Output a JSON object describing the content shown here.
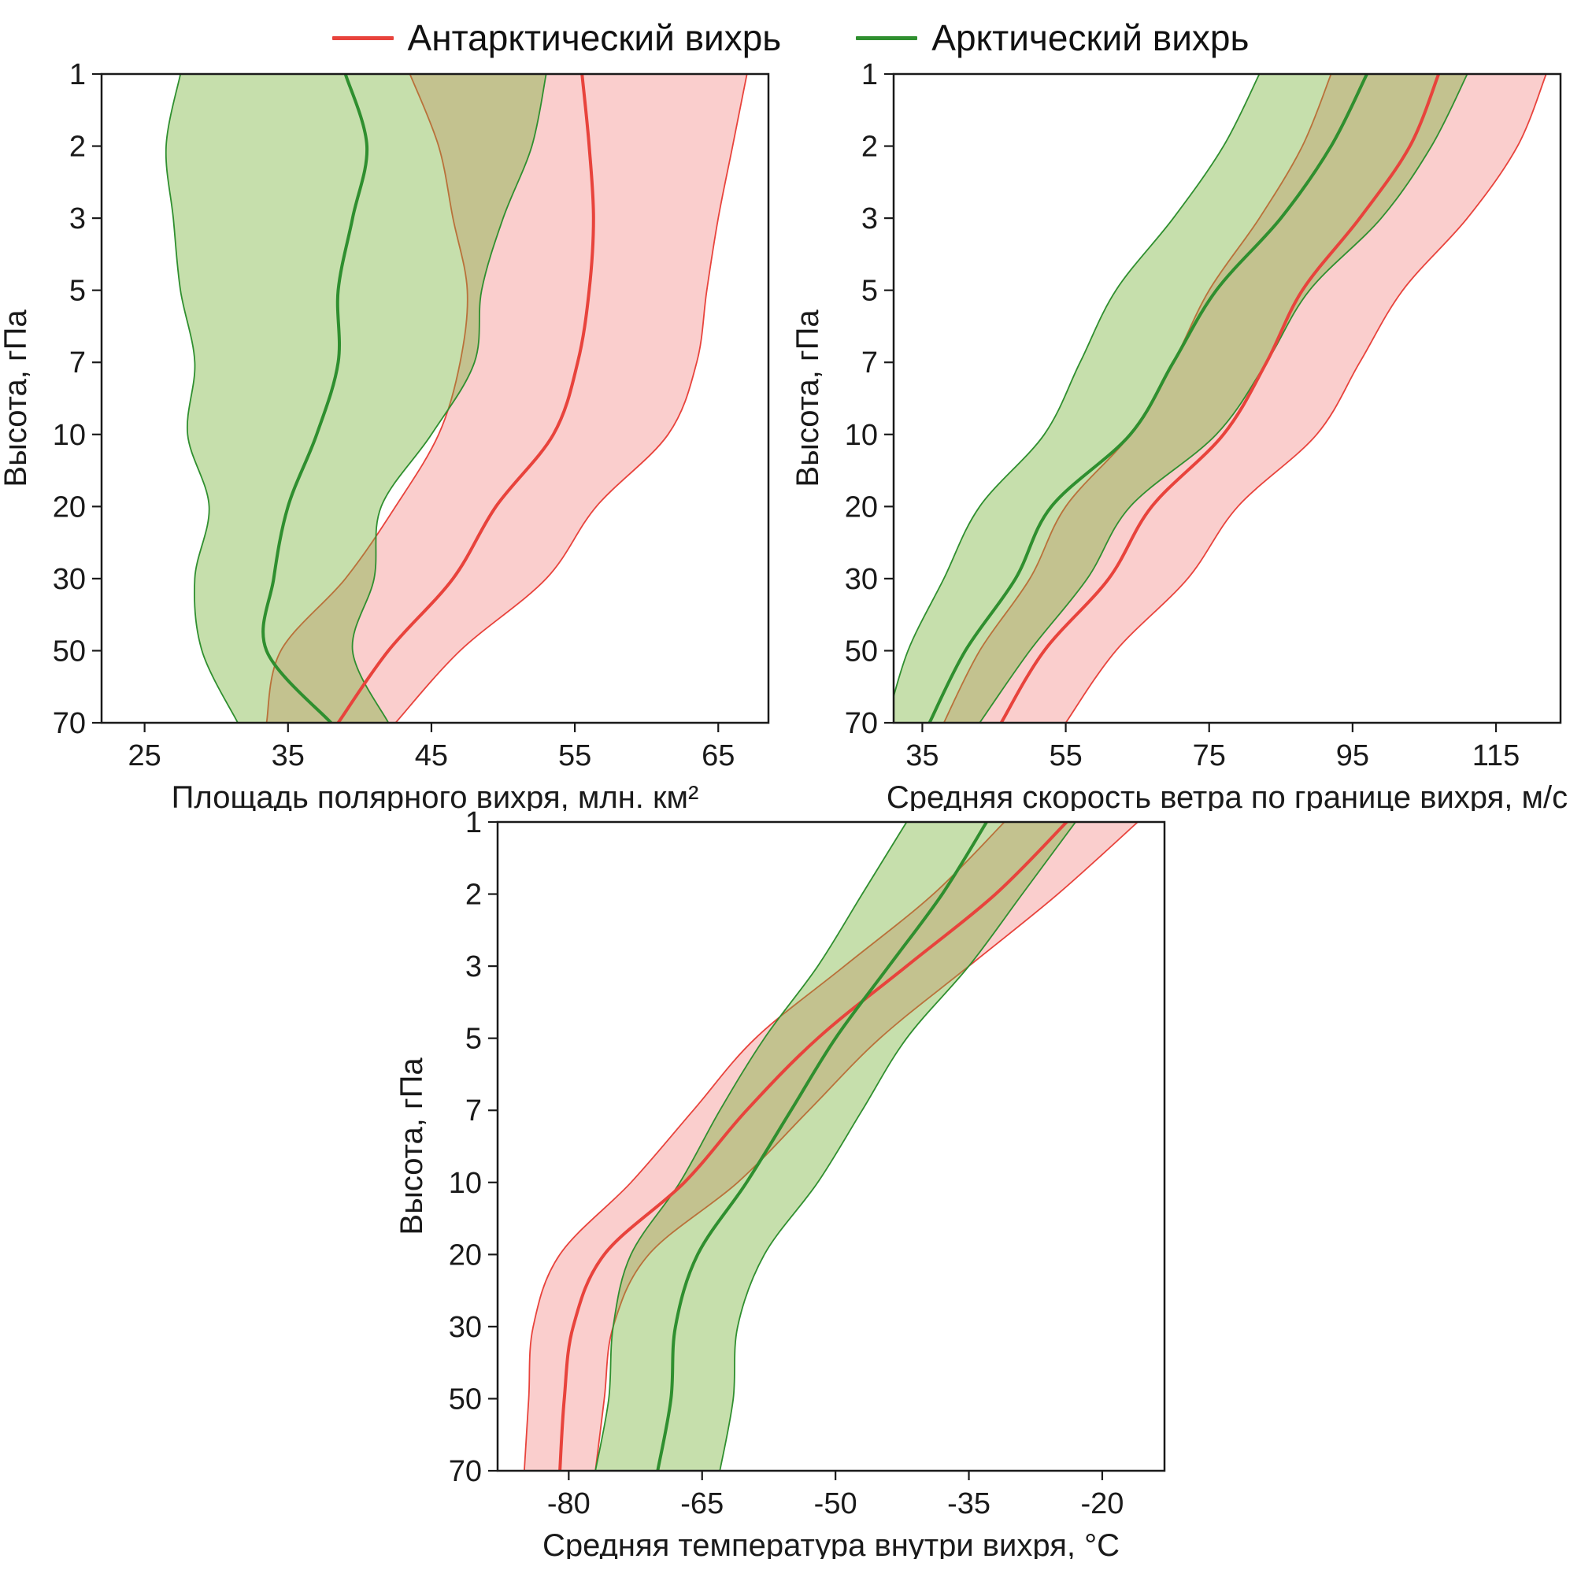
{
  "legend": {
    "items": [
      {
        "key": "antarctic",
        "label": "Антарктический вихрь",
        "color": "#e8433c"
      },
      {
        "key": "arctic",
        "label": "Арктический вихрь",
        "color": "#2f8f2f"
      }
    ]
  },
  "axis_style": {
    "frame_color": "#1a1a1a",
    "tick_font_size": 38,
    "label_font_size": 40
  },
  "chart_data": [
    {
      "type": "area",
      "title": "",
      "xlabel": "Площадь полярного вихря, млн. км²",
      "ylabel": "Высота, гПа",
      "xlim": [
        22,
        68.5
      ],
      "x_ticks": [
        25,
        35,
        45,
        55,
        65
      ],
      "y_scale": "ordinal-pressure-levels",
      "y_ticks": [
        1,
        2,
        3,
        5,
        7,
        10,
        20,
        30,
        50,
        70
      ],
      "pressure_levels": [
        1,
        2,
        3,
        5,
        7,
        10,
        20,
        30,
        50,
        70
      ],
      "series": [
        {
          "key": "antarctic",
          "name": "Антарктический вихрь",
          "color": "#e8433c",
          "fill": "rgba(239,93,88,0.30)",
          "mean": [
            55.5,
            56.0,
            56.3,
            56.0,
            55.2,
            53.5,
            49.5,
            46.5,
            42.0,
            38.5
          ],
          "lower": [
            43.5,
            45.5,
            46.5,
            47.5,
            47.0,
            45.5,
            42.5,
            39.0,
            34.5,
            33.5
          ],
          "upper": [
            67.0,
            66.0,
            65.0,
            64.2,
            63.5,
            61.5,
            56.5,
            53.0,
            47.0,
            42.5
          ]
        },
        {
          "key": "arctic",
          "name": "Арктический вихрь",
          "color": "#2f8f2f",
          "fill": "rgba(118,178,58,0.42)",
          "mean": [
            39.0,
            40.5,
            39.5,
            38.5,
            38.5,
            37.0,
            35.0,
            34.0,
            33.5,
            38.0
          ],
          "lower": [
            27.5,
            26.5,
            27.0,
            27.5,
            28.5,
            28.0,
            29.5,
            28.5,
            29.0,
            31.5
          ],
          "upper": [
            53.0,
            52.0,
            50.0,
            48.5,
            48.0,
            45.0,
            41.5,
            41.0,
            39.5,
            42.0
          ]
        }
      ]
    },
    {
      "type": "area",
      "title": "",
      "xlabel": "Средняя скорость ветра по границе вихря, м/с",
      "ylabel": "Высота, гПа",
      "xlim": [
        31,
        124
      ],
      "x_ticks": [
        35,
        55,
        75,
        95,
        115
      ],
      "y_scale": "ordinal-pressure-levels",
      "y_ticks": [
        1,
        2,
        3,
        5,
        7,
        10,
        20,
        30,
        50,
        70
      ],
      "pressure_levels": [
        1,
        2,
        3,
        5,
        7,
        10,
        20,
        30,
        50,
        70
      ],
      "series": [
        {
          "key": "antarctic",
          "name": "Антарктический вихрь",
          "color": "#e8433c",
          "fill": "rgba(239,93,88,0.30)",
          "mean": [
            107,
            103,
            96,
            88,
            83,
            77,
            67,
            61,
            52,
            46
          ],
          "lower": [
            92,
            88,
            82,
            75,
            70,
            64,
            55,
            50,
            43,
            38
          ],
          "upper": [
            122,
            118,
            111,
            102,
            96,
            90,
            79,
            72,
            62,
            55
          ]
        },
        {
          "key": "arctic",
          "name": "Арктический вихрь",
          "color": "#2f8f2f",
          "fill": "rgba(118,178,58,0.42)",
          "mean": [
            97,
            92,
            85,
            76,
            70,
            64,
            53,
            48,
            41,
            36
          ],
          "lower": [
            82,
            77,
            70,
            62,
            57,
            52,
            43,
            38,
            33,
            30
          ],
          "upper": [
            111,
            106,
            99,
            89,
            83,
            76,
            64,
            58,
            50,
            43
          ]
        }
      ]
    },
    {
      "type": "area",
      "title": "",
      "xlabel": "Средняя температура внутри вихря, °C",
      "ylabel": "Высота, гПа",
      "xlim": [
        -88,
        -13
      ],
      "x_ticks": [
        -80,
        -65,
        -50,
        -35,
        -20
      ],
      "y_scale": "ordinal-pressure-levels",
      "y_ticks": [
        1,
        2,
        3,
        5,
        7,
        10,
        20,
        30,
        50,
        70
      ],
      "pressure_levels": [
        1,
        2,
        3,
        5,
        7,
        10,
        20,
        30,
        50,
        70
      ],
      "series": [
        {
          "key": "antarctic",
          "name": "Антарктический вихрь",
          "color": "#e8433c",
          "fill": "rgba(239,93,88,0.30)",
          "mean": [
            -24,
            -32,
            -42,
            -52,
            -60,
            -67,
            -76,
            -79.5,
            -80.5,
            -81
          ],
          "lower": [
            -31,
            -39,
            -49,
            -59,
            -66,
            -73,
            -81,
            -84,
            -84.5,
            -85
          ],
          "upper": [
            -16,
            -25,
            -35,
            -45,
            -53,
            -61,
            -71,
            -75,
            -76,
            -77
          ]
        },
        {
          "key": "arctic",
          "name": "Арктический вихрь",
          "color": "#2f8f2f",
          "fill": "rgba(118,178,58,0.42)",
          "mean": [
            -33,
            -38,
            -44,
            -50,
            -55,
            -60,
            -65.5,
            -68,
            -68.5,
            -70
          ],
          "lower": [
            -42,
            -47,
            -52,
            -58,
            -63,
            -67.5,
            -73,
            -75,
            -75.5,
            -77
          ],
          "upper": [
            -23,
            -29,
            -35,
            -42,
            -47,
            -52,
            -58,
            -61,
            -61.5,
            -63
          ]
        }
      ]
    }
  ]
}
